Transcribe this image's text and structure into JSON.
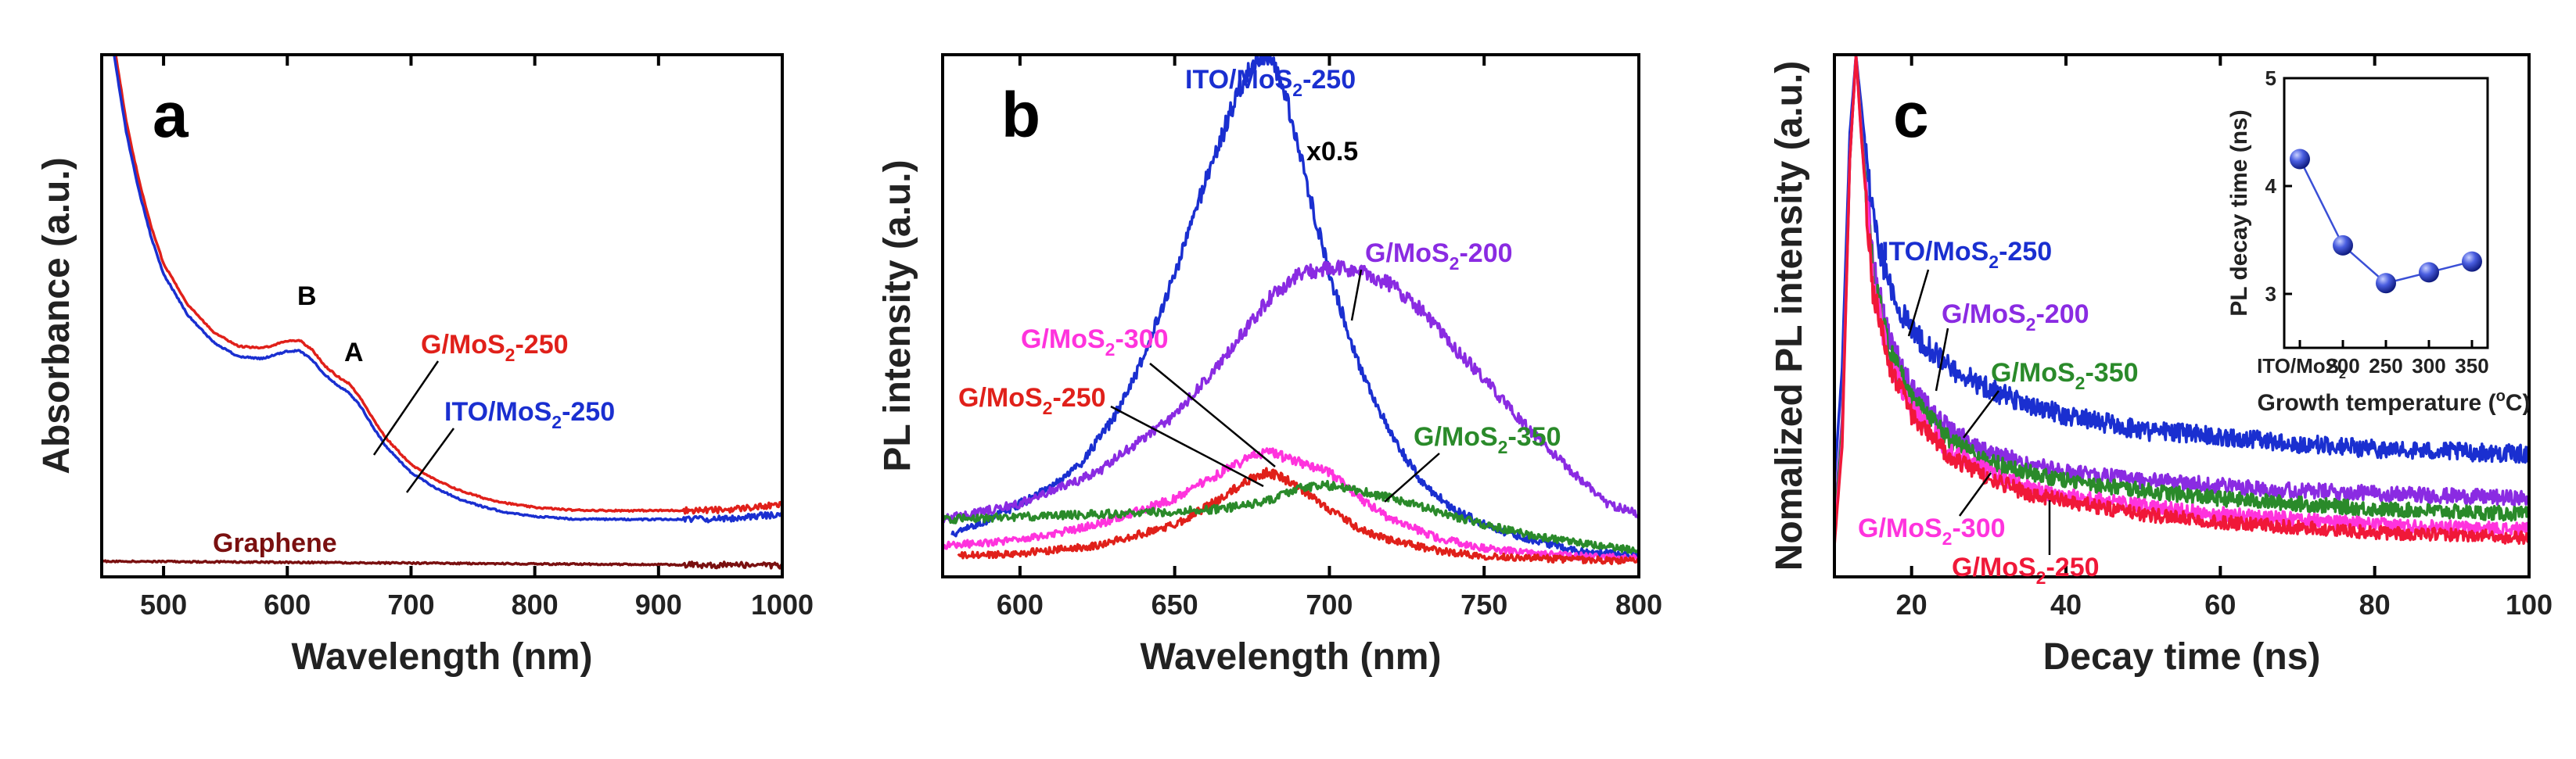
{
  "chart_data": [
    {
      "panel": "a",
      "type": "line",
      "title": "",
      "xlabel": "Wavelength (nm)",
      "ylabel": "Absorbance (a.u.)",
      "xlim": [
        450,
        1000
      ],
      "ylim": [
        0,
        1
      ],
      "xticks": [
        500,
        600,
        700,
        800,
        900,
        1000
      ],
      "yticks_shown": false,
      "series": [
        {
          "name": "G/MoS2-250",
          "color": "#e0201a",
          "x": [
            460,
            470,
            480,
            490,
            500,
            520,
            540,
            560,
            580,
            600,
            610,
            620,
            630,
            640,
            650,
            660,
            670,
            680,
            700,
            720,
            740,
            760,
            780,
            800,
            830,
            860,
            900,
            950,
            1000
          ],
          "y": [
            1.02,
            0.87,
            0.76,
            0.67,
            0.6,
            0.52,
            0.47,
            0.442,
            0.438,
            0.452,
            0.453,
            0.435,
            0.405,
            0.385,
            0.37,
            0.34,
            0.3,
            0.265,
            0.215,
            0.185,
            0.165,
            0.15,
            0.14,
            0.133,
            0.128,
            0.127,
            0.127,
            0.128,
            0.138
          ]
        },
        {
          "name": "ITO/MoS2-250",
          "color": "#1a2fd0",
          "x": [
            460,
            470,
            480,
            490,
            500,
            520,
            540,
            560,
            580,
            600,
            610,
            620,
            630,
            640,
            650,
            660,
            670,
            680,
            700,
            720,
            740,
            760,
            780,
            800,
            830,
            860,
            900,
            950,
            1000
          ],
          "y": [
            1.0,
            0.85,
            0.74,
            0.65,
            0.58,
            0.5,
            0.45,
            0.422,
            0.418,
            0.432,
            0.433,
            0.416,
            0.388,
            0.368,
            0.353,
            0.324,
            0.284,
            0.249,
            0.2,
            0.17,
            0.148,
            0.133,
            0.122,
            0.116,
            0.111,
            0.11,
            0.11,
            0.111,
            0.12
          ]
        },
        {
          "name": "Graphene",
          "color": "#7a1010",
          "x": [
            450,
            1000
          ],
          "y": [
            0.03,
            0.022
          ]
        }
      ],
      "annotations": [
        {
          "text": "B"
        },
        {
          "text": "A"
        },
        {
          "text": "G/MoS",
          "sub": "2",
          "rest": "-250",
          "color": "#e0201a"
        },
        {
          "text": "ITO/MoS",
          "sub": "2",
          "rest": "-250",
          "color": "#1a2fd0"
        },
        {
          "text": "Graphene",
          "color": "#7a1010"
        }
      ]
    },
    {
      "panel": "b",
      "type": "line",
      "title": "",
      "xlabel": "Wavelength (nm)",
      "ylabel": "PL intensity (a.u.)",
      "xlim": [
        575,
        800
      ],
      "ylim": [
        0,
        1
      ],
      "xticks": [
        600,
        650,
        700,
        750,
        800
      ],
      "yticks_shown": false,
      "series": [
        {
          "name": "ITO/MoS2-250",
          "color": "#1a2fd0",
          "scale_note": "x0.5",
          "x": [
            578,
            590,
            600,
            610,
            620,
            630,
            640,
            650,
            660,
            665,
            670,
            675,
            678,
            682,
            686,
            690,
            695,
            700,
            710,
            720,
            730,
            740,
            750,
            760,
            780,
            800
          ],
          "y": [
            0.08,
            0.11,
            0.14,
            0.17,
            0.22,
            0.3,
            0.42,
            0.58,
            0.76,
            0.84,
            0.92,
            0.98,
            1.0,
            0.98,
            0.92,
            0.82,
            0.7,
            0.58,
            0.4,
            0.27,
            0.18,
            0.13,
            0.1,
            0.08,
            0.05,
            0.04
          ]
        },
        {
          "name": "G/MoS2-200",
          "color": "#8a2be2",
          "x": [
            575,
            600,
            625,
            650,
            665,
            680,
            690,
            700,
            705,
            710,
            720,
            730,
            740,
            750,
            760,
            775,
            790,
            800
          ],
          "y": [
            0.11,
            0.14,
            0.2,
            0.31,
            0.41,
            0.53,
            0.58,
            0.59,
            0.59,
            0.585,
            0.56,
            0.51,
            0.44,
            0.38,
            0.31,
            0.22,
            0.14,
            0.12
          ]
        },
        {
          "name": "G/MoS2-300",
          "color": "#ff33dd",
          "x": [
            575,
            600,
            625,
            650,
            665,
            675,
            680,
            690,
            700,
            710,
            720,
            735,
            750,
            765,
            780,
            800
          ],
          "y": [
            0.06,
            0.07,
            0.1,
            0.15,
            0.2,
            0.23,
            0.24,
            0.22,
            0.2,
            0.15,
            0.11,
            0.075,
            0.055,
            0.045,
            0.04,
            0.035
          ]
        },
        {
          "name": "G/MoS2-250",
          "color": "#e0201a",
          "x": [
            580,
            600,
            625,
            650,
            665,
            675,
            680,
            685,
            690,
            700,
            710,
            720,
            735,
            750,
            770,
            800
          ],
          "y": [
            0.04,
            0.045,
            0.06,
            0.1,
            0.15,
            0.19,
            0.2,
            0.19,
            0.17,
            0.13,
            0.09,
            0.07,
            0.05,
            0.04,
            0.035,
            0.03
          ]
        },
        {
          "name": "G/MoS2-350",
          "color": "#2a8a2a",
          "x": [
            575,
            600,
            625,
            650,
            665,
            680,
            690,
            700,
            710,
            720,
            735,
            750,
            765,
            780,
            800
          ],
          "y": [
            0.11,
            0.115,
            0.12,
            0.125,
            0.13,
            0.145,
            0.17,
            0.175,
            0.165,
            0.15,
            0.125,
            0.1,
            0.08,
            0.065,
            0.05
          ]
        }
      ],
      "annotations": [
        {
          "text": "ITO/MoS",
          "sub": "2",
          "rest": "-250",
          "color": "#1a2fd0"
        },
        {
          "text": "x0.5",
          "color": "#000000"
        },
        {
          "text": "G/MoS",
          "sub": "2",
          "rest": "-200",
          "color": "#8a2be2"
        },
        {
          "text": "G/MoS",
          "sub": "2",
          "rest": "-300",
          "color": "#ff33dd"
        },
        {
          "text": "G/MoS",
          "sub": "2",
          "rest": "-250",
          "color": "#e0201a"
        },
        {
          "text": "G/MoS",
          "sub": "2",
          "rest": "-350",
          "color": "#2a8a2a"
        }
      ]
    },
    {
      "panel": "c",
      "type": "line",
      "title": "",
      "xlabel": "Decay time (ns)",
      "ylabel": "Nomalized PL intensity (a.u.)",
      "xlim": [
        10,
        100
      ],
      "ylim": [
        0,
        1
      ],
      "xticks": [
        20,
        40,
        60,
        80,
        100
      ],
      "yticks_shown": false,
      "series": [
        {
          "name": "ITO/MoS2-250",
          "color": "#1a2fd0",
          "x": [
            10,
            11,
            12,
            12.8,
            13.5,
            15,
            17,
            20,
            25,
            30,
            35,
            40,
            50,
            60,
            70,
            80,
            90,
            100
          ],
          "y": [
            0.18,
            0.4,
            0.85,
            1.0,
            0.9,
            0.68,
            0.56,
            0.47,
            0.4,
            0.36,
            0.33,
            0.31,
            0.28,
            0.27,
            0.255,
            0.245,
            0.24,
            0.235
          ]
        },
        {
          "name": "G/MoS2-200",
          "color": "#8a2be2",
          "x": [
            10,
            11,
            12,
            12.8,
            13.5,
            15,
            17,
            20,
            25,
            30,
            35,
            40,
            50,
            60,
            70,
            80,
            90,
            100
          ],
          "y": [
            0.1,
            0.3,
            0.8,
            1.0,
            0.86,
            0.6,
            0.46,
            0.36,
            0.28,
            0.24,
            0.215,
            0.2,
            0.185,
            0.175,
            0.165,
            0.16,
            0.155,
            0.15
          ]
        },
        {
          "name": "G/MoS2-350",
          "color": "#2a8a2a",
          "x": [
            10,
            11,
            12,
            12.8,
            13.5,
            15,
            17,
            20,
            25,
            30,
            35,
            40,
            50,
            60,
            70,
            80,
            90,
            100
          ],
          "y": [
            0.09,
            0.28,
            0.8,
            1.0,
            0.85,
            0.58,
            0.44,
            0.34,
            0.26,
            0.22,
            0.2,
            0.185,
            0.165,
            0.15,
            0.14,
            0.13,
            0.125,
            0.12
          ]
        },
        {
          "name": "G/MoS2-300",
          "color": "#ff33dd",
          "x": [
            10,
            11,
            12,
            12.8,
            13.5,
            15,
            17,
            20,
            25,
            30,
            35,
            40,
            50,
            60,
            70,
            80,
            90,
            100
          ],
          "y": [
            0.07,
            0.26,
            0.8,
            1.0,
            0.84,
            0.56,
            0.42,
            0.32,
            0.24,
            0.2,
            0.17,
            0.155,
            0.135,
            0.12,
            0.11,
            0.1,
            0.095,
            0.09
          ]
        },
        {
          "name": "G/MoS2-250",
          "color": "#f01838",
          "x": [
            10,
            11,
            12,
            12.8,
            13.5,
            15,
            17,
            20,
            25,
            30,
            35,
            40,
            50,
            60,
            70,
            80,
            90,
            100
          ],
          "y": [
            0.06,
            0.25,
            0.8,
            1.0,
            0.84,
            0.55,
            0.41,
            0.31,
            0.23,
            0.19,
            0.16,
            0.145,
            0.12,
            0.105,
            0.095,
            0.085,
            0.08,
            0.075
          ]
        }
      ],
      "annotations": [
        {
          "text": "ITO/MoS",
          "sub": "2",
          "rest": "-250",
          "color": "#1a2fd0"
        },
        {
          "text": "G/MoS",
          "sub": "2",
          "rest": "-200",
          "color": "#8a2be2"
        },
        {
          "text": "G/MoS",
          "sub": "2",
          "rest": "-350",
          "color": "#2a8a2a"
        },
        {
          "text": "G/MoS",
          "sub": "2",
          "rest": "-300",
          "color": "#ff33dd"
        },
        {
          "text": "G/MoS",
          "sub": "2",
          "rest": "-250",
          "color": "#f01838"
        }
      ],
      "inset": {
        "type": "scatter",
        "xlabel": "Growth temperature (",
        "xlabel_unit": "o",
        "xlabel_end": "C)",
        "ylabel": "PL decay time (ns)",
        "categories": [
          "ITO/MoS2",
          "200",
          "250",
          "300",
          "350"
        ],
        "category_label_first": {
          "text": "ITO/MoS",
          "sub": "2"
        },
        "values": [
          4.25,
          3.45,
          3.1,
          3.2,
          3.3
        ],
        "ylim": [
          2.5,
          5
        ],
        "yticks": [
          3,
          4,
          5
        ],
        "color": "#3a4fd6"
      }
    }
  ]
}
